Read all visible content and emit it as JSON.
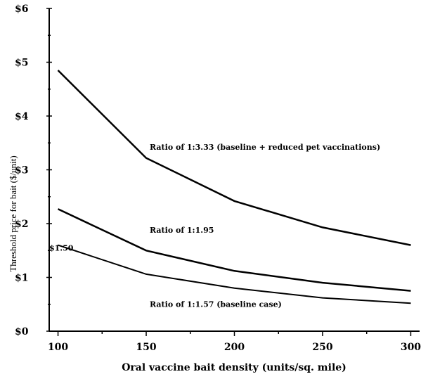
{
  "chart_data": {
    "type": "line",
    "title": "",
    "xlabel": "Oral vaccine bait density (units/sq. mile)",
    "ylabel": "Threshold price for bait ($/unit)",
    "x": [
      100,
      150,
      200,
      250,
      300
    ],
    "x_ticks": [
      "100",
      "150",
      "200",
      "250",
      "300"
    ],
    "xlim": [
      95,
      305
    ],
    "ylim": [
      0,
      6
    ],
    "y_ticks": [
      "$0",
      "$1",
      "$2",
      "$3",
      "$4",
      "$5",
      "$6"
    ],
    "grid": false,
    "series": [
      {
        "name": "Ratio of 1:3.33 (baseline + reduced pet vaccinations)",
        "values": [
          4.85,
          3.22,
          2.42,
          1.93,
          1.6
        ],
        "width": 2.5
      },
      {
        "name": "Ratio of 1:1.95",
        "values": [
          2.27,
          1.5,
          1.12,
          0.9,
          0.75
        ],
        "width": 2.5
      },
      {
        "name": "Ratio of 1:1.57 (baseline case)",
        "values": [
          1.6,
          1.06,
          0.8,
          0.62,
          0.52
        ],
        "width": 2
      }
    ],
    "annotations": [
      {
        "text": "Ratio of 1:3.33 (baseline + reduced pet vaccinations)",
        "x": 152,
        "y": 3.37
      },
      {
        "text": "Ratio of 1:1.95",
        "x": 152,
        "y": 1.83
      },
      {
        "text": "Ratio of 1:1.57 (baseline case)",
        "x": 152,
        "y": 0.45
      },
      {
        "text": "$1.50",
        "x": 95,
        "y": 1.5
      }
    ]
  }
}
